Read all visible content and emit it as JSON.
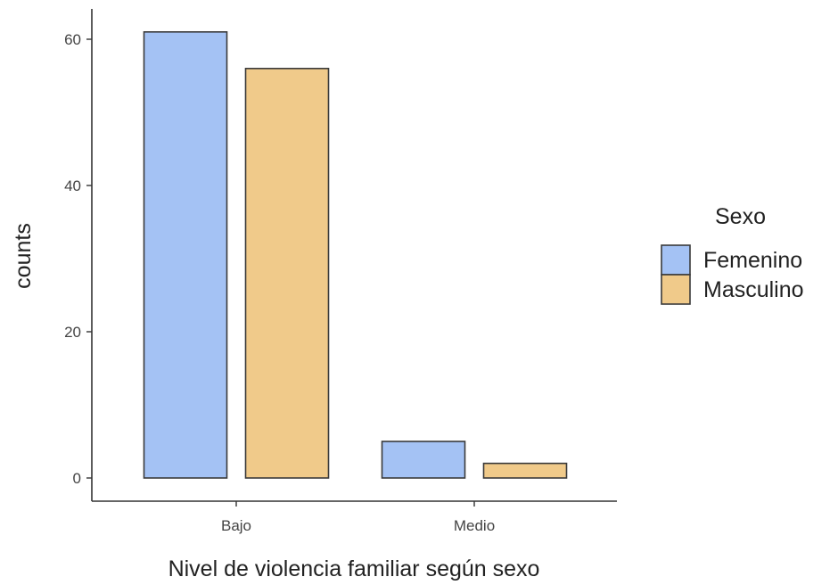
{
  "chart_data": {
    "type": "bar",
    "title": "",
    "xlabel": "Nivel de violencia familiar según sexo",
    "ylabel": "counts",
    "categories": [
      "Bajo",
      "Medio"
    ],
    "series": [
      {
        "name": "Femenino",
        "values": [
          61,
          5
        ],
        "color": "#a4c2f4"
      },
      {
        "name": "Masculino",
        "values": [
          56,
          2
        ],
        "color": "#f0ca8a"
      }
    ],
    "ylim": [
      0,
      64
    ],
    "yticks": [
      0,
      20,
      40,
      60
    ],
    "grid": false,
    "bar_outline_color": "#3a3a3a",
    "legend": {
      "title": "Sexo",
      "position": "right"
    }
  }
}
